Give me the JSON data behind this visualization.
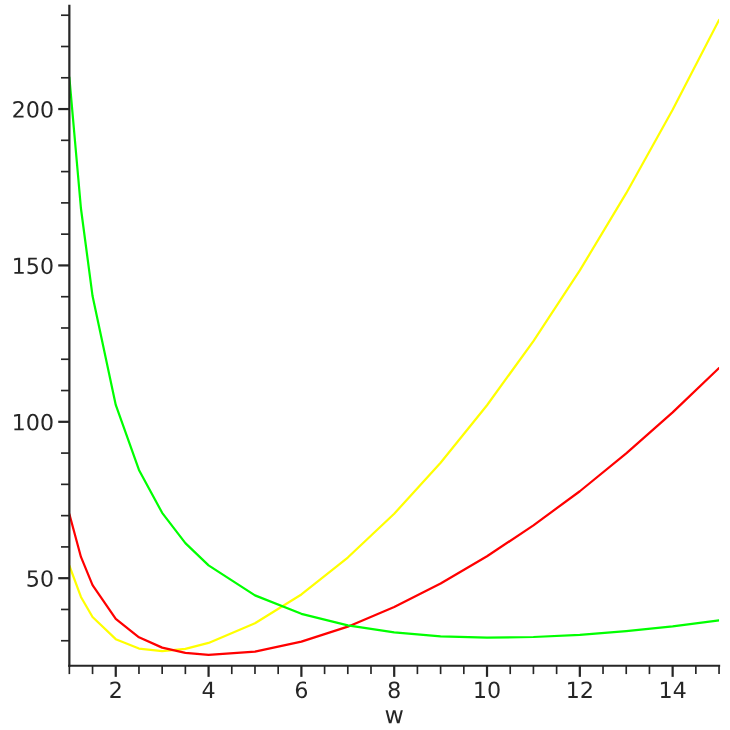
{
  "chart_data": {
    "type": "line",
    "xlabel": "w",
    "x": [
      1,
      1.25,
      1.5,
      2,
      2.5,
      3,
      3.5,
      4,
      5,
      6,
      7,
      8,
      9,
      10,
      11,
      12,
      13,
      14,
      15
    ],
    "series": [
      {
        "color": "#ffff00",
        "values": [
          54,
          44.0,
          37.6,
          30.5,
          27.5,
          26.7,
          27.4,
          29.3,
          35.6,
          44.8,
          56.6,
          70.6,
          86.9,
          105.3,
          125.8,
          148.4,
          173.1,
          199.8,
          228.5
        ]
      },
      {
        "color": "#ff0000",
        "values": [
          70.5,
          56.8,
          47.8,
          37,
          31.1,
          27.8,
          26.1,
          25.5,
          26.5,
          29.7,
          34.5,
          40.8,
          48.3,
          57,
          66.9,
          77.8,
          89.9,
          103,
          117.2
        ]
      },
      {
        "color": "#00ff00",
        "values": [
          210.1,
          168.2,
          140.2,
          105.4,
          84.6,
          70.9,
          61.2,
          54.1,
          44.5,
          38.6,
          34.9,
          32.7,
          31.4,
          31,
          31.2,
          31.9,
          33.1,
          34.6,
          36.5
        ]
      }
    ],
    "xlim": [
      1,
      15
    ],
    "xticks": [
      2,
      4,
      6,
      8,
      10,
      12,
      14
    ],
    "ylim": [
      22,
      233
    ],
    "yticks": [
      50,
      100,
      150,
      200
    ],
    "grid": false,
    "legend": false
  }
}
